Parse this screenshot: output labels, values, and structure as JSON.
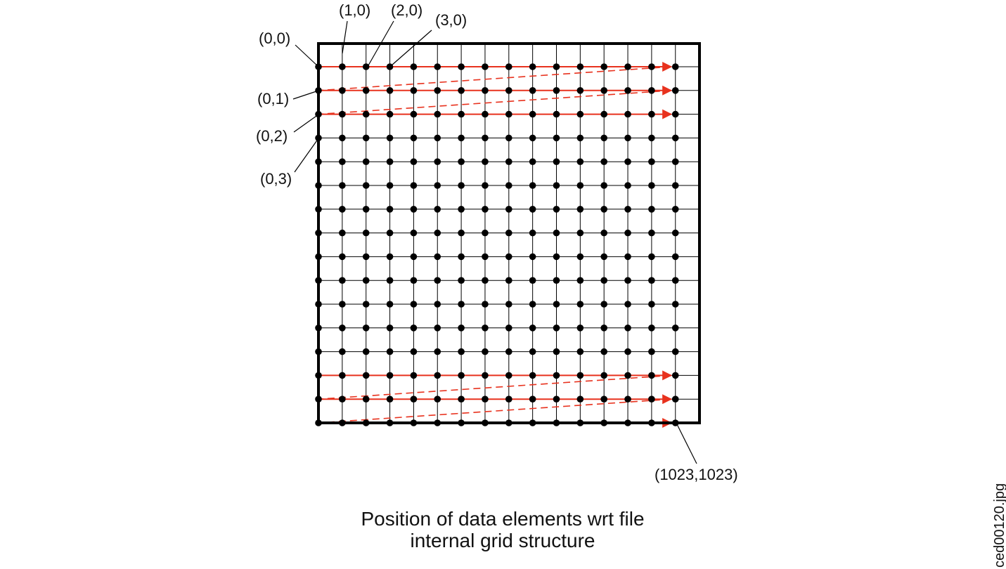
{
  "labels": {
    "p_0_0": "(0,0)",
    "p_1_0": "(1,0)",
    "p_2_0": "(2,0)",
    "p_3_0": "(3,0)",
    "p_0_1": "(0,1)",
    "p_0_2": "(0,2)",
    "p_0_3": "(0,3)",
    "p_last": "(1023,1023)"
  },
  "caption": {
    "line1": "Position of data elements wrt file",
    "line2": "internal grid structure"
  },
  "file_name": "ced00120.jpg",
  "grid": {
    "columns_shown": 16,
    "rows_shown": 16
  },
  "colors": {
    "grid": "#000000",
    "dots": "#000000",
    "scan_arrows": "#e8321e",
    "border": "#000000"
  }
}
